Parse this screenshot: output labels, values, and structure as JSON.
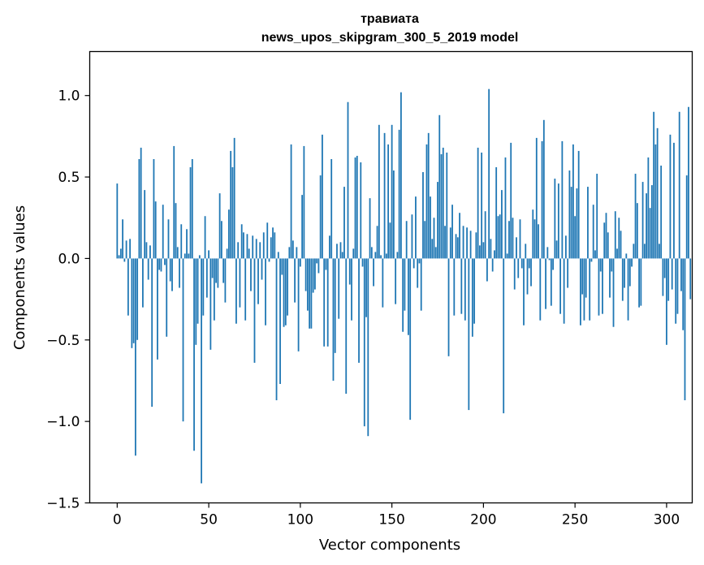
{
  "chart_data": {
    "type": "bar",
    "title": "травиата",
    "subtitle": "news_upos_skipgram_300_5_2019 model",
    "xlabel": "Vector components",
    "ylabel": "Components values",
    "xlim": [
      -15,
      314
    ],
    "ylim": [
      -1.5,
      1.27
    ],
    "xticks": [
      0,
      50,
      100,
      150,
      200,
      250,
      300
    ],
    "yticks": [
      -1.5,
      -1.0,
      -0.5,
      0.0,
      0.5,
      1.0
    ],
    "ytick_labels": [
      "−1.5",
      "−1.0",
      "−0.5",
      "0.0",
      "0.5",
      "1.0"
    ],
    "grid": false,
    "bar_color": "#1f77b4",
    "values": [
      0.46,
      0.02,
      0.06,
      0.24,
      -0.02,
      0.11,
      -0.35,
      0.12,
      -0.55,
      -0.52,
      -1.21,
      -0.5,
      0.61,
      0.68,
      -0.3,
      0.42,
      0.1,
      -0.13,
      0.08,
      -0.91,
      0.61,
      0.35,
      -0.62,
      -0.07,
      -0.08,
      0.33,
      -0.04,
      -0.48,
      0.24,
      -0.14,
      -0.2,
      0.69,
      0.34,
      0.07,
      -0.18,
      0.21,
      -1.0,
      0.03,
      0.18,
      0.03,
      0.56,
      0.61,
      -1.18,
      -0.53,
      -0.4,
      0.02,
      -1.38,
      -0.35,
      0.26,
      -0.24,
      0.05,
      -0.56,
      -0.12,
      -0.38,
      -0.15,
      -0.18,
      0.4,
      0.23,
      -0.15,
      -0.27,
      0.06,
      0.3,
      0.66,
      0.56,
      0.74,
      -0.4,
      0.1,
      -0.3,
      0.21,
      0.16,
      -0.38,
      0.15,
      0.06,
      -0.2,
      0.14,
      -0.64,
      0.12,
      -0.28,
      0.1,
      -0.13,
      0.16,
      -0.41,
      0.22,
      -0.02,
      0.13,
      0.19,
      0.16,
      -0.87,
      0.04,
      -0.77,
      -0.1,
      -0.42,
      -0.41,
      -0.35,
      0.07,
      0.7,
      0.11,
      -0.27,
      0.07,
      -0.57,
      -0.05,
      0.39,
      0.69,
      -0.2,
      -0.32,
      -0.43,
      -0.43,
      -0.21,
      -0.19,
      -0.03,
      -0.09,
      0.51,
      0.76,
      -0.54,
      -0.07,
      -0.54,
      0.14,
      0.61,
      -0.75,
      -0.58,
      0.09,
      -0.37,
      0.1,
      0.04,
      0.44,
      -0.83,
      0.96,
      -0.16,
      -0.38,
      0.06,
      0.62,
      0.63,
      -0.64,
      0.59,
      -0.05,
      -1.03,
      -0.36,
      -1.09,
      0.37,
      0.07,
      -0.17,
      0.04,
      0.2,
      0.82,
      0.02,
      -0.3,
      0.77,
      0.03,
      0.7,
      0.22,
      0.82,
      0.54,
      -0.28,
      0.04,
      0.79,
      1.02,
      -0.45,
      -0.32,
      0.23,
      -0.47,
      -0.99,
      0.27,
      -0.06,
      0.38,
      -0.18,
      -0.03,
      -0.32,
      0.53,
      0.23,
      0.7,
      0.77,
      0.38,
      0.12,
      0.25,
      0.07,
      0.47,
      0.88,
      0.64,
      0.68,
      0.2,
      0.65,
      -0.6,
      0.19,
      0.33,
      -0.35,
      0.15,
      0.13,
      0.28,
      -0.34,
      0.2,
      -0.38,
      0.19,
      -0.93,
      0.17,
      -0.48,
      -0.4,
      0.16,
      0.68,
      0.08,
      0.65,
      0.1,
      0.29,
      -0.14,
      1.04,
      0.12,
      -0.08,
      0.05,
      0.56,
      0.26,
      0.27,
      0.42,
      -0.95,
      0.62,
      0.03,
      0.23,
      0.71,
      0.25,
      -0.19,
      0.13,
      -0.12,
      0.24,
      -0.06,
      -0.41,
      0.09,
      -0.22,
      -0.06,
      -0.17,
      0.3,
      0.24,
      0.74,
      0.21,
      -0.38,
      0.72,
      0.85,
      -0.31,
      0.07,
      -0.01,
      -0.29,
      -0.07,
      0.49,
      0.11,
      0.46,
      -0.34,
      0.72,
      -0.4,
      0.14,
      -0.18,
      0.54,
      0.44,
      0.7,
      0.26,
      0.43,
      0.66,
      -0.41,
      -0.22,
      -0.38,
      -0.24,
      0.44,
      -0.38,
      -0.02,
      0.33,
      0.05,
      0.52,
      -0.35,
      -0.08,
      -0.34,
      0.22,
      0.28,
      0.16,
      -0.24,
      -0.08,
      -0.42,
      0.29,
      0.06,
      0.25,
      0.17,
      -0.26,
      -0.18,
      0.03,
      -0.38,
      -0.17,
      -0.05,
      0.09,
      0.52,
      0.34,
      -0.3,
      -0.29,
      0.47,
      0.09,
      0.4,
      0.62,
      0.31,
      0.45,
      0.9,
      0.7,
      0.8,
      0.09,
      0.57,
      -0.23,
      -0.12,
      -0.53,
      -0.26,
      0.76,
      -0.19,
      0.71,
      -0.4,
      -0.34,
      0.9,
      -0.2,
      -0.44,
      -0.87,
      0.51,
      0.93,
      -0.25
    ]
  }
}
